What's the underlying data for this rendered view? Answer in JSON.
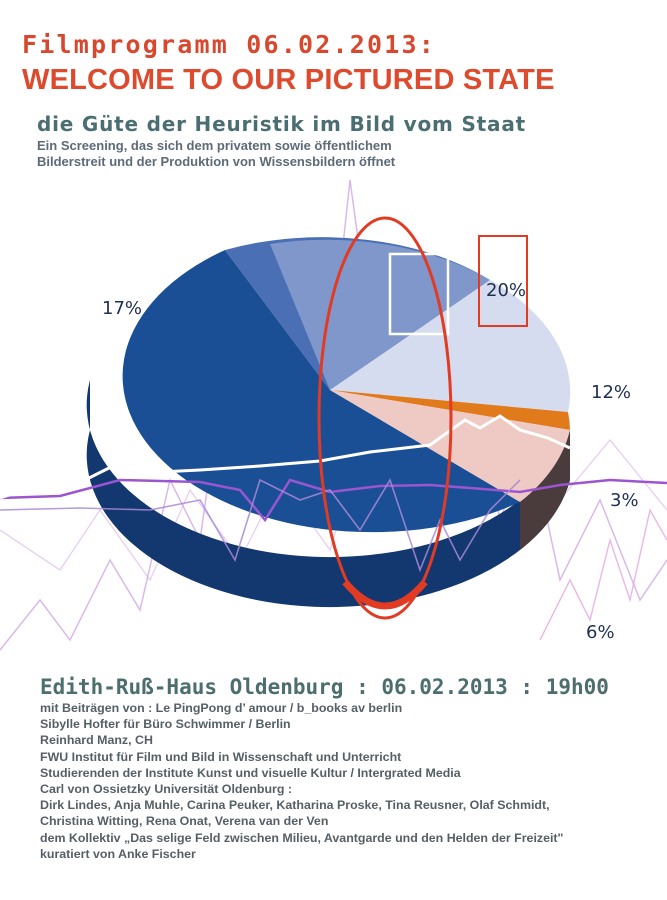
{
  "header": {
    "program_title": "Filmprogramm 06.02.2013:",
    "headline": "WELCOME TO OUR PICTURED STATE",
    "subtitle": "die Güte der Heuristik im Bild vom Staat",
    "description_lines": [
      "Ein Screening, das sich dem privatem sowie öffentlichem",
      "Bilderstreit und der Produktion von Wissensbildern öffnet"
    ]
  },
  "pie_labels": {
    "left": "17%",
    "top_right": "20%",
    "right": "12%",
    "right_mid": "3%",
    "bottom_right": "6%"
  },
  "colors": {
    "headline_red": "#dd4a2e",
    "teal_text": "#4b6e73",
    "pie_dark_blue": "#1b4f95",
    "pie_mid_blue": "#4a6fb5",
    "pie_light_blue": "#d6dcef",
    "pie_orange": "#e07a1a",
    "pie_pink": "#efc9c3",
    "ellipse_red": "#e23b24",
    "purple_line": "#b85bd6"
  },
  "event": {
    "venue_line": "Edith-Ruß-Haus Oldenburg : 06.02.2013 : 19h00",
    "credits": [
      "mit Beiträgen von : Le PingPong  d’ amour / b_books av berlin",
      "Sibylle Hofter für Büro Schwimmer / Berlin",
      "Reinhard Manz, CH",
      "FWU Institut für Film und Bild in Wissenschaft und Unterricht",
      "Studierenden der Institute Kunst und visuelle Kultur / Intergrated Media",
      "Carl von Ossietzky Universität Oldenburg :",
      "Dirk Lindes, Anja Muhle, Carina Peuker, Katharina Proske, Tina Reusner, Olaf Schmidt,",
      "Christina Witting, Rena Onat, Verena van der Ven",
      "dem Kollektiv „Das selige Feld zwischen Milieu, Avantgarde und den Helden der Freizeit\"",
      "kuratiert von Anke Fischer"
    ]
  }
}
